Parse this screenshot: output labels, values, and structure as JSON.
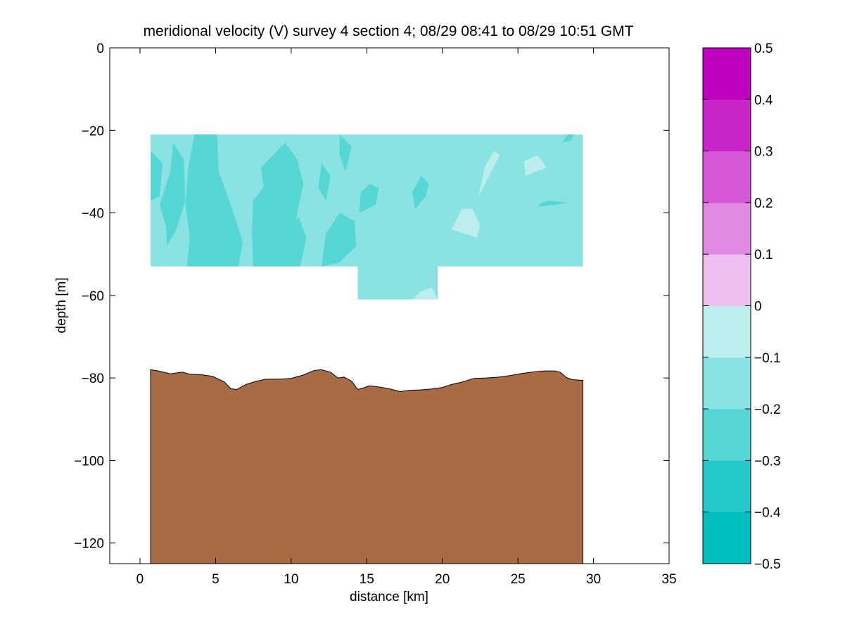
{
  "chart_data": [
    {
      "type": "heatmap",
      "title": "meridional velocity (V) survey 4 section 4; 08/29 08:41 to 08/29 10:51 GMT",
      "xlabel": "distance [km]",
      "ylabel": "depth [m]",
      "xlim": [
        -2,
        35
      ],
      "ylim": [
        -125,
        0
      ],
      "xticks": [
        "0",
        "5",
        "10",
        "15",
        "20",
        "25",
        "30",
        "35"
      ],
      "yticks": [
        "0",
        "−20",
        "−40",
        "−60",
        "−80",
        "−100",
        "−120"
      ],
      "data_extent": {
        "x_start": 0.7,
        "x_end": 29.3,
        "top_depth": -21,
        "bottom_depth": -53,
        "deep_patch": {
          "x_start": 14.4,
          "x_end": 19.7,
          "bottom_depth": -61
        }
      },
      "background_level": -0.15,
      "patches": [
        {
          "level": -0.25,
          "points": [
            [
              0.7,
              -37
            ],
            [
              1.3,
              -36
            ],
            [
              1.5,
              -28
            ],
            [
              0.7,
              -25
            ]
          ]
        },
        {
          "level": -0.25,
          "points": [
            [
              1.8,
              -48
            ],
            [
              2.4,
              -44
            ],
            [
              3.0,
              -37
            ],
            [
              2.9,
              -27
            ],
            [
              2.2,
              -23
            ],
            [
              2.0,
              -30
            ],
            [
              1.3,
              -38
            ],
            [
              1.7,
              -43
            ]
          ]
        },
        {
          "level": -0.25,
          "points": [
            [
              3.1,
              -53
            ],
            [
              6.5,
              -53
            ],
            [
              6.8,
              -47
            ],
            [
              6.0,
              -38
            ],
            [
              5.2,
              -30
            ],
            [
              5.1,
              -21
            ],
            [
              3.6,
              -21
            ],
            [
              3.2,
              -29
            ],
            [
              3.0,
              -38
            ],
            [
              3.3,
              -46
            ]
          ]
        },
        {
          "level": -0.25,
          "points": [
            [
              7.5,
              -53
            ],
            [
              10.6,
              -53
            ],
            [
              11.0,
              -46
            ],
            [
              10.5,
              -41
            ],
            [
              9.8,
              -44
            ],
            [
              8.8,
              -40
            ],
            [
              8.3,
              -33
            ],
            [
              7.5,
              -37
            ],
            [
              7.4,
              -45
            ]
          ]
        },
        {
          "level": -0.25,
          "points": [
            [
              9.1,
              -49
            ],
            [
              10.2,
              -44
            ],
            [
              10.8,
              -33
            ],
            [
              10.4,
              -27
            ],
            [
              9.6,
              -23
            ],
            [
              8.0,
              -29
            ],
            [
              8.3,
              -37
            ]
          ]
        },
        {
          "level": -0.25,
          "points": [
            [
              12.0,
              -53
            ],
            [
              13.2,
              -52
            ],
            [
              14.3,
              -48
            ],
            [
              14.2,
              -42
            ],
            [
              13.2,
              -40
            ],
            [
              12.3,
              -45
            ]
          ]
        },
        {
          "level": -0.25,
          "points": [
            [
              14.5,
              -40
            ],
            [
              15.6,
              -38
            ],
            [
              15.8,
              -34
            ],
            [
              15.2,
              -33
            ],
            [
              14.6,
              -35
            ]
          ]
        },
        {
          "level": -0.25,
          "points": [
            [
              18.2,
              -39
            ],
            [
              18.9,
              -36
            ],
            [
              19.1,
              -33
            ],
            [
              18.6,
              -31
            ],
            [
              18.0,
              -35
            ]
          ]
        },
        {
          "level": -0.25,
          "points": [
            [
              26.3,
              -38.5
            ],
            [
              27.5,
              -38
            ],
            [
              28.3,
              -37.5
            ],
            [
              27.0,
              -37
            ],
            [
              26.6,
              -37.5
            ]
          ]
        },
        {
          "level": -0.25,
          "points": [
            [
              13.2,
              -21
            ],
            [
              14.0,
              -24
            ],
            [
              13.6,
              -30
            ],
            [
              13.2,
              -26
            ]
          ]
        },
        {
          "level": -0.25,
          "points": [
            [
              12.0,
              -28
            ],
            [
              12.6,
              -31
            ],
            [
              12.3,
              -37
            ],
            [
              11.8,
              -34
            ]
          ]
        },
        {
          "level": -0.25,
          "points": [
            [
              27.9,
              -23
            ],
            [
              28.3,
              -21
            ],
            [
              28.7,
              -21
            ],
            [
              28.5,
              -22.5
            ]
          ]
        },
        {
          "level": -0.05,
          "points": [
            [
              22.4,
              -36
            ],
            [
              23.8,
              -26
            ],
            [
              23.4,
              -25
            ],
            [
              22.8,
              -29
            ]
          ]
        },
        {
          "level": -0.05,
          "points": [
            [
              25.5,
              -31
            ],
            [
              26.9,
              -29
            ],
            [
              26.3,
              -26
            ],
            [
              25.4,
              -27.5
            ]
          ]
        },
        {
          "level": -0.05,
          "points": [
            [
              20.6,
              -44
            ],
            [
              22.3,
              -46
            ],
            [
              22.5,
              -43
            ],
            [
              22.0,
              -39
            ],
            [
              21.3,
              -39
            ]
          ]
        },
        {
          "level": -0.05,
          "points": [
            [
              18.0,
              -61
            ],
            [
              19.7,
              -61
            ],
            [
              19.3,
              -58
            ],
            [
              18.6,
              -59
            ]
          ]
        }
      ],
      "bathymetry": {
        "fill": "#a86b46",
        "x": [
          0.7,
          1.2,
          2.0,
          2.8,
          3.3,
          4.0,
          4.8,
          5.6,
          6.0,
          6.4,
          7.0,
          7.6,
          8.3,
          9.2,
          10.0,
          10.8,
          11.5,
          12.0,
          12.6,
          13.1,
          13.5,
          14.0,
          14.4,
          14.7,
          15.2,
          16.0,
          16.6,
          17.2,
          17.8,
          18.5,
          19.2,
          20.0,
          20.7,
          21.3,
          22.1,
          22.9,
          23.7,
          24.5,
          25.3,
          26.1,
          26.8,
          27.4,
          27.8,
          28.2,
          28.6,
          29.3
        ],
        "depth": [
          -78,
          -78.3,
          -79,
          -78.6,
          -79.1,
          -79.2,
          -79.6,
          -81.0,
          -82.6,
          -82.8,
          -81.6,
          -80.9,
          -80.3,
          -80.3,
          -80.1,
          -79.3,
          -78.2,
          -78.0,
          -78.6,
          -80.0,
          -79.8,
          -80.8,
          -82.8,
          -82.5,
          -81.9,
          -82.3,
          -82.7,
          -83.3,
          -83.0,
          -82.9,
          -82.7,
          -82.3,
          -81.5,
          -81.0,
          -80.1,
          -80.0,
          -79.8,
          -79.4,
          -78.9,
          -78.5,
          -78.3,
          -78.3,
          -78.6,
          -79.9,
          -80.4,
          -80.6
        ]
      }
    },
    {
      "type": "heatmap",
      "title": "",
      "colorbar": {
        "levels": [
          -0.5,
          -0.4,
          -0.3,
          -0.2,
          -0.1,
          0,
          0.1,
          0.2,
          0.3,
          0.4,
          0.5
        ],
        "tick_labels": [
          "0.5",
          "0.4",
          "0.3",
          "0.2",
          "0.1",
          "0",
          "−0.1",
          "−0.2",
          "−0.3",
          "−0.4",
          "−0.5"
        ],
        "colors": [
          "#00bebe",
          "#26c9c9",
          "#57d6d6",
          "#8ae2e2",
          "#bdeeee",
          "#eebeee",
          "#e28ae2",
          "#d657d6",
          "#c926c9",
          "#be00be"
        ]
      }
    }
  ]
}
